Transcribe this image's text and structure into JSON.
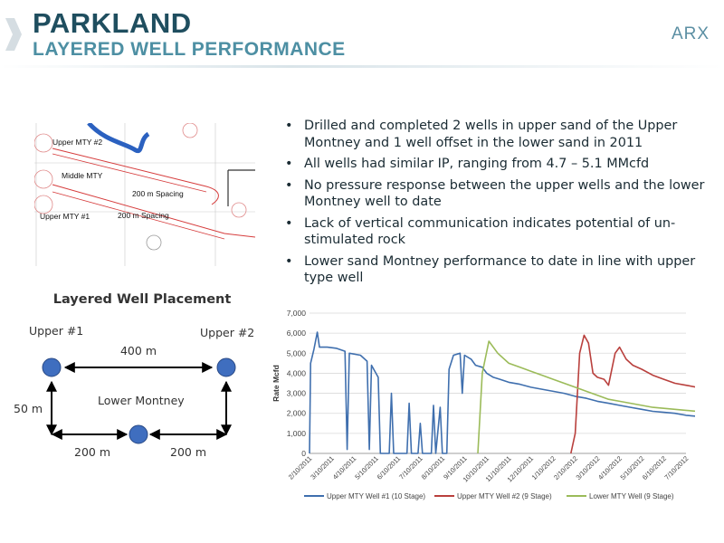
{
  "header": {
    "title": "PARKLAND",
    "subtitle": "LAYERED WELL PERFORMANCE",
    "logo": "ARX"
  },
  "map": {
    "labels": [
      "Upper MTY #2",
      "Middle MTY",
      "200 m Spacing",
      "Upper MTY #1",
      "200 m Spacing"
    ]
  },
  "bullets": [
    "Drilled and completed  2 wells in upper sand of the Upper Montney and 1 well offset in the lower sand in 2011",
    "All wells had similar IP, ranging from 4.7 – 5.1 MMcfd",
    "No pressure response between the upper wells and the lower Montney well to date",
    "Lack of vertical communication indicates potential of un-stimulated rock",
    "Lower sand Montney performance to date in line with upper type well"
  ],
  "placement": {
    "title": "Layered Well Placement",
    "upper1": "Upper #1",
    "upper2": "Upper #2",
    "dist_top": "400 m",
    "dist_side": "50 m",
    "lower_label": "Lower Montney",
    "dist_left": "200 m",
    "dist_right": "200 m",
    "well_color": "#3f6ebf"
  },
  "chart_data": {
    "type": "line",
    "title": "",
    "xlabel": "",
    "ylabel": "Rate Mcfd",
    "ylim": [
      0,
      7000
    ],
    "yticks": [
      "0",
      "1,000",
      "2,000",
      "3,000",
      "4,000",
      "5,000",
      "6,000",
      "7,000"
    ],
    "xticks": [
      "2/10/2011",
      "3/10/2011",
      "4/10/2011",
      "5/10/2011",
      "6/10/2011",
      "7/10/2011",
      "8/10/2011",
      "9/10/2011",
      "10/10/2011",
      "11/10/2011",
      "12/10/2011",
      "1/10/2012",
      "2/10/2012",
      "3/10/2012",
      "4/10/2012",
      "5/10/2012",
      "6/10/2012",
      "7/10/2012"
    ],
    "x_unit": "months since 2/10/2011",
    "series": [
      {
        "name": "Upper MTY Well #1 (10 Stage)",
        "color": "#3f6fae",
        "points": [
          [
            0,
            0
          ],
          [
            0.05,
            4500
          ],
          [
            0.2,
            5200
          ],
          [
            0.35,
            6050
          ],
          [
            0.45,
            5300
          ],
          [
            0.8,
            5300
          ],
          [
            1.2,
            5250
          ],
          [
            1.6,
            5100
          ],
          [
            1.7,
            200
          ],
          [
            1.8,
            5000
          ],
          [
            2.3,
            4900
          ],
          [
            2.6,
            4600
          ],
          [
            2.7,
            200
          ],
          [
            2.8,
            4400
          ],
          [
            3.1,
            3800
          ],
          [
            3.2,
            0
          ],
          [
            3.6,
            0
          ],
          [
            3.7,
            3000
          ],
          [
            3.8,
            0
          ],
          [
            4.4,
            0
          ],
          [
            4.5,
            2500
          ],
          [
            4.6,
            0
          ],
          [
            4.9,
            0
          ],
          [
            5.0,
            1500
          ],
          [
            5.1,
            0
          ],
          [
            5.5,
            0
          ],
          [
            5.6,
            2400
          ],
          [
            5.7,
            0
          ],
          [
            5.9,
            2300
          ],
          [
            6.0,
            0
          ],
          [
            6.2,
            0
          ],
          [
            6.3,
            4200
          ],
          [
            6.5,
            4900
          ],
          [
            6.8,
            5000
          ],
          [
            6.9,
            3000
          ],
          [
            7.0,
            4900
          ],
          [
            7.3,
            4700
          ],
          [
            7.5,
            4400
          ],
          [
            7.8,
            4300
          ],
          [
            8.0,
            4000
          ],
          [
            8.3,
            3800
          ],
          [
            8.6,
            3700
          ],
          [
            9.0,
            3550
          ],
          [
            9.5,
            3450
          ],
          [
            10,
            3300
          ],
          [
            10.5,
            3200
          ],
          [
            11,
            3100
          ],
          [
            11.5,
            3000
          ],
          [
            12,
            2850
          ],
          [
            12.5,
            2750
          ],
          [
            13,
            2600
          ],
          [
            13.5,
            2500
          ],
          [
            14,
            2400
          ],
          [
            14.5,
            2300
          ],
          [
            15,
            2200
          ],
          [
            15.5,
            2100
          ],
          [
            16,
            2050
          ],
          [
            16.5,
            2000
          ],
          [
            17,
            1900
          ],
          [
            17.5,
            1850
          ],
          [
            18,
            1800
          ]
        ]
      },
      {
        "name": "Upper MTY Well #2 (9 Stage)",
        "color": "#b9403d",
        "points": [
          [
            11.8,
            0
          ],
          [
            12.0,
            1000
          ],
          [
            12.2,
            5000
          ],
          [
            12.4,
            5900
          ],
          [
            12.6,
            5500
          ],
          [
            12.8,
            4000
          ],
          [
            13.0,
            3800
          ],
          [
            13.3,
            3700
          ],
          [
            13.5,
            3400
          ],
          [
            13.8,
            5000
          ],
          [
            14.0,
            5300
          ],
          [
            14.3,
            4700
          ],
          [
            14.6,
            4400
          ],
          [
            15.0,
            4200
          ],
          [
            15.5,
            3900
          ],
          [
            16.0,
            3700
          ],
          [
            16.5,
            3500
          ],
          [
            17.0,
            3400
          ],
          [
            17.5,
            3300
          ],
          [
            18,
            3250
          ]
        ]
      },
      {
        "name": "Lower  MTY Well (9 Stage)",
        "color": "#9bbb59",
        "points": [
          [
            7.6,
            0
          ],
          [
            7.8,
            4000
          ],
          [
            8.1,
            5600
          ],
          [
            8.5,
            5000
          ],
          [
            9.0,
            4500
          ],
          [
            9.5,
            4300
          ],
          [
            10,
            4100
          ],
          [
            10.5,
            3900
          ],
          [
            11,
            3700
          ],
          [
            11.5,
            3500
          ],
          [
            12,
            3300
          ],
          [
            12.5,
            3100
          ],
          [
            13,
            2900
          ],
          [
            13.5,
            2700
          ],
          [
            14,
            2600
          ],
          [
            14.5,
            2500
          ],
          [
            15,
            2400
          ],
          [
            15.5,
            2300
          ],
          [
            16,
            2250
          ],
          [
            16.5,
            2200
          ],
          [
            17,
            2150
          ],
          [
            17.5,
            2100
          ],
          [
            18,
            2080
          ]
        ]
      }
    ],
    "legend": "bottom"
  }
}
